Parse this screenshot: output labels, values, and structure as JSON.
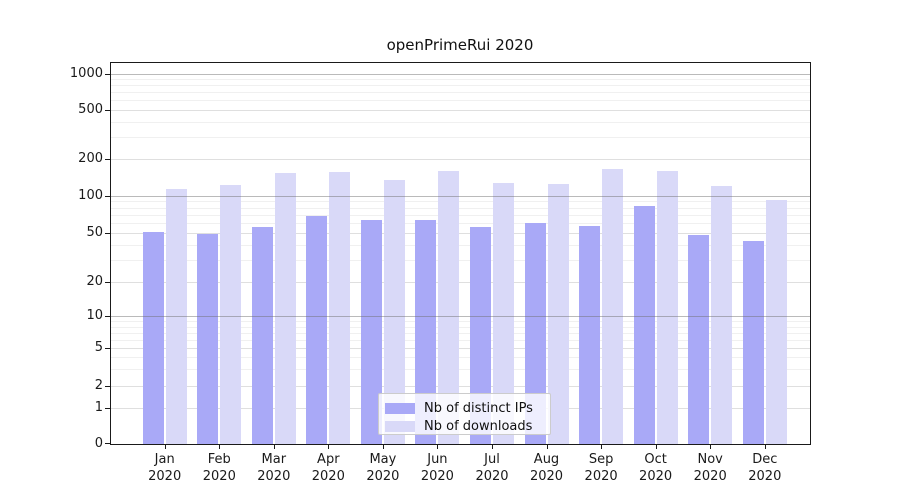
{
  "title": "openPrimeRui 2020",
  "chart_data": {
    "type": "bar",
    "title": "openPrimeRui 2020",
    "yscale": "log-like",
    "grid": "horizontal",
    "legend_position": "inside-bottom-center",
    "y_ticks": [
      0,
      1,
      2,
      5,
      10,
      20,
      50,
      100,
      200,
      500,
      1000
    ],
    "ylim": [
      0,
      1300
    ],
    "categories": [
      {
        "month": "Jan",
        "year": "2020"
      },
      {
        "month": "Feb",
        "year": "2020"
      },
      {
        "month": "Mar",
        "year": "2020"
      },
      {
        "month": "Apr",
        "year": "2020"
      },
      {
        "month": "May",
        "year": "2020"
      },
      {
        "month": "Jun",
        "year": "2020"
      },
      {
        "month": "Jul",
        "year": "2020"
      },
      {
        "month": "Aug",
        "year": "2020"
      },
      {
        "month": "Sep",
        "year": "2020"
      },
      {
        "month": "Oct",
        "year": "2020"
      },
      {
        "month": "Nov",
        "year": "2020"
      },
      {
        "month": "Dec",
        "year": "2020"
      }
    ],
    "series": [
      {
        "name": "Nb of distinct IPs",
        "color": "#a9a9f7",
        "values": [
          51,
          49,
          56,
          68,
          64,
          63,
          56,
          60,
          57,
          82,
          48,
          43
        ]
      },
      {
        "name": "Nb of downloads",
        "color": "#d9d9f8",
        "values": [
          113,
          122,
          155,
          157,
          134,
          160,
          127,
          124,
          166,
          161,
          119,
          92
        ]
      }
    ]
  },
  "colors": {
    "distinct_ips_bar": "#a9a9f7",
    "downloads_bar": "#d9d9f8",
    "axis": "#1a1a1a",
    "grid_strong": "#b3b3b3",
    "grid_light": "#e2e2e2"
  }
}
